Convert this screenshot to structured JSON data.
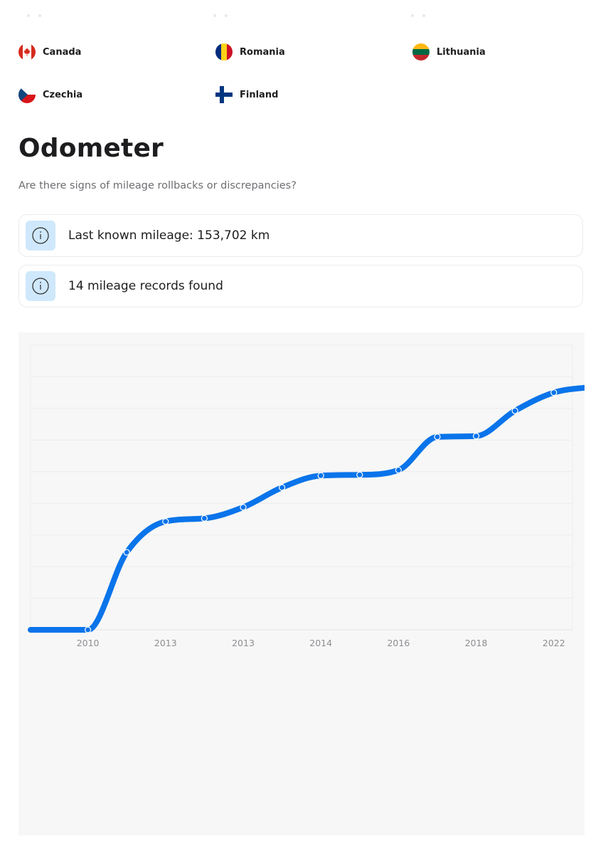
{
  "countries": [
    {
      "name": "Canada",
      "flag_icon": "canada-flag-icon"
    },
    {
      "name": "Romania",
      "flag_icon": "romania-flag-icon"
    },
    {
      "name": "Lithuania",
      "flag_icon": "lithuania-flag-icon"
    },
    {
      "name": "Czechia",
      "flag_icon": "czechia-flag-icon"
    },
    {
      "name": "Finland",
      "flag_icon": "finland-flag-icon"
    }
  ],
  "odometer": {
    "title": "Odometer",
    "subtitle": "Are there signs of mileage rollbacks or discrepancies?",
    "cards": [
      {
        "icon": "info-icon",
        "text": "Last known mileage: 153,702 km"
      },
      {
        "icon": "info-icon",
        "text": "14 mileage records found"
      }
    ]
  },
  "colors": {
    "accent_line": "#0a74ea",
    "info_badge_bg": "#cfe8fb",
    "panel_bg": "#f7f7f7"
  },
  "chart_data": {
    "type": "line",
    "title": "",
    "xlabel": "",
    "ylabel": "",
    "x_tick_labels": [
      "2010",
      "2013",
      "2013",
      "2014",
      "2016",
      "2018",
      "2022"
    ],
    "ylim": [
      0,
      180000
    ],
    "grid": true,
    "y_axis_labels_shown": false,
    "legend": "none",
    "series": [
      {
        "values": [
          0,
          0,
          49000,
          68500,
          70500,
          77500,
          90000,
          97500,
          98000,
          101000,
          122000,
          122500,
          138500,
          150000,
          153702
        ]
      }
    ]
  }
}
